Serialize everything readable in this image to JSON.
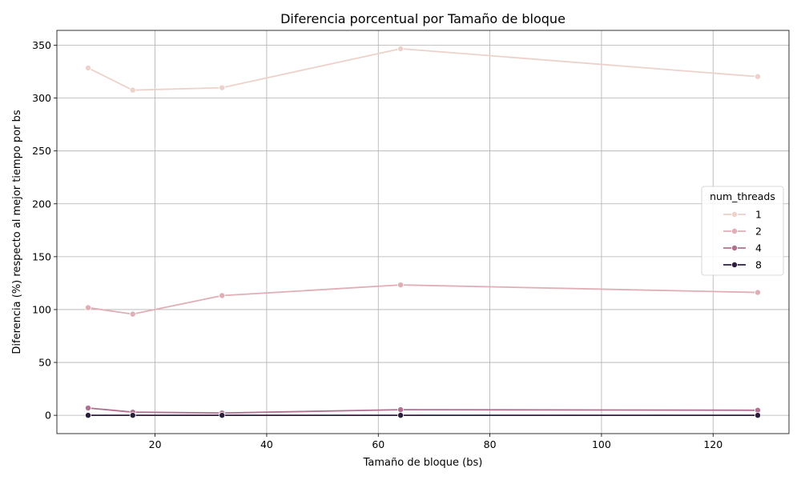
{
  "chart_data": {
    "type": "line",
    "title": "Diferencia porcentual por Tamaño de bloque",
    "xlabel": "Tamaño de bloque (bs)",
    "ylabel": "Diferencia (%) respecto al mejor tiempo por bs",
    "x": [
      8,
      16,
      32,
      64,
      128
    ],
    "xlim": [
      2.4,
      133.6
    ],
    "ylim": [
      -17.3,
      364
    ],
    "xticks": [
      20,
      40,
      60,
      80,
      100,
      120
    ],
    "yticks": [
      0,
      50,
      100,
      150,
      200,
      250,
      300,
      350
    ],
    "grid": true,
    "legend": {
      "title": "num_threads",
      "placement": "center-right"
    },
    "series": [
      {
        "name": "1",
        "color": "#edd1cb",
        "values": [
          328.5,
          307.5,
          309.8,
          346.7,
          320.3
        ]
      },
      {
        "name": "2",
        "color": "#e0aeb4",
        "values": [
          101.8,
          95.7,
          113.2,
          123.3,
          116.2
        ]
      },
      {
        "name": "4",
        "color": "#b0708f",
        "values": [
          6.9,
          3.0,
          2.2,
          5.3,
          4.8
        ]
      },
      {
        "name": "8",
        "color": "#2d1e3e",
        "values": [
          0.0,
          0.0,
          0.0,
          0.0,
          0.0
        ]
      }
    ]
  }
}
